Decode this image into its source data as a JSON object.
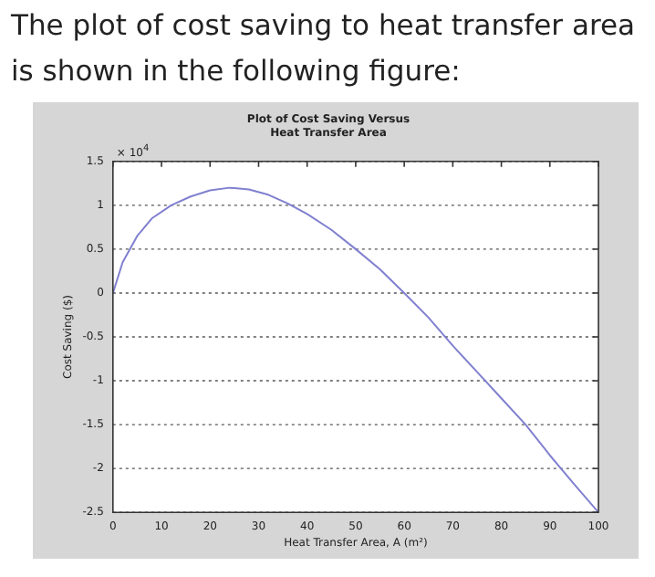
{
  "chart_data": {
    "type": "line",
    "title": "The plot of cost saving to heat transfer area\nis shown in the following figure:",
    "subtitle": "Plot of Cost Saving Versus\nHeat Transfer Area",
    "xlabel": "Heat Transfer Area, A (m²)",
    "ylabel": "Cost Saving ($)",
    "annotations": [
      "× 10$^{4}$"
    ],
    "x": [
      0,
      2,
      5,
      8,
      12,
      16,
      20,
      24,
      28,
      32,
      36,
      40,
      45,
      50,
      55,
      60,
      65,
      70,
      75,
      80,
      85,
      90,
      95,
      100
    ],
    "series": [
      {
        "color": "#8080d0",
        "values": [
          0,
          0.35,
          0.65,
          0.85,
          1.0,
          1.1,
          1.17,
          1.2,
          1.18,
          1.12,
          1.02,
          0.9,
          0.72,
          0.5,
          0.27,
          0,
          -0.28,
          -0.6,
          -0.9,
          -1.2,
          -1.5,
          -1.85,
          -2.18,
          -2.5
        ]
      }
    ],
    "xlim": [
      0,
      100
    ],
    "xticks": [
      0,
      10,
      20,
      30,
      40,
      50,
      60,
      70,
      80,
      90,
      100
    ],
    "ylim": [
      -2.5,
      1.5
    ],
    "yticks": [
      -2.5,
      -2,
      -1.5,
      -1,
      -0.5,
      0,
      0.5,
      1,
      1.5
    ],
    "grid": "y",
    "marker": "none",
    "line_style": "solid",
    "legend": false
  }
}
